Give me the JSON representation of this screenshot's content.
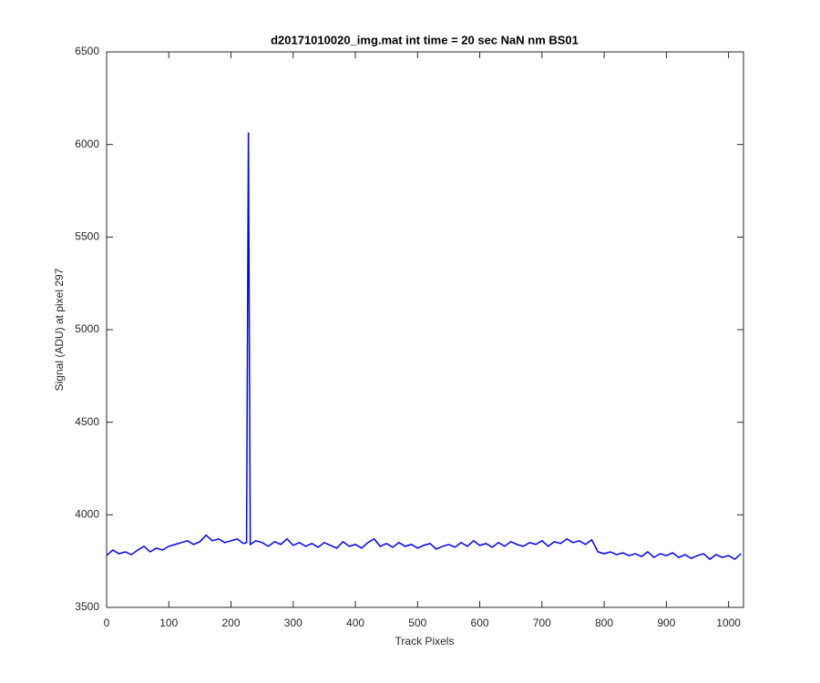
{
  "chart_data": {
    "type": "line",
    "title": "d20171010020_img.mat int time = 20 sec  NaN nm BS01",
    "x_label": "Track Pixels",
    "y_label": "Signal (ADU) at pixel 297",
    "color": "#0000ff",
    "x": [
      0,
      10,
      20,
      30,
      40,
      50,
      60,
      70,
      80,
      90,
      100,
      110,
      120,
      130,
      140,
      150,
      160,
      170,
      180,
      190,
      200,
      210,
      220,
      225,
      228,
      231,
      240,
      250,
      260,
      270,
      280,
      290,
      300,
      310,
      320,
      330,
      340,
      350,
      360,
      370,
      380,
      390,
      400,
      410,
      420,
      430,
      440,
      450,
      460,
      470,
      480,
      490,
      500,
      510,
      520,
      530,
      540,
      550,
      560,
      570,
      580,
      590,
      600,
      610,
      620,
      630,
      640,
      650,
      660,
      670,
      680,
      690,
      700,
      710,
      720,
      730,
      740,
      750,
      760,
      770,
      780,
      790,
      800,
      810,
      820,
      830,
      840,
      850,
      860,
      870,
      880,
      890,
      900,
      910,
      920,
      930,
      940,
      950,
      960,
      970,
      980,
      990,
      1000,
      1010,
      1020
    ],
    "values": [
      3780,
      3810,
      3790,
      3800,
      3785,
      3810,
      3830,
      3800,
      3820,
      3810,
      3830,
      3840,
      3850,
      3860,
      3840,
      3855,
      3890,
      3860,
      3870,
      3850,
      3860,
      3870,
      3845,
      3850,
      6065,
      3840,
      3860,
      3850,
      3830,
      3855,
      3840,
      3870,
      3835,
      3850,
      3830,
      3845,
      3825,
      3850,
      3835,
      3820,
      3855,
      3830,
      3840,
      3820,
      3850,
      3870,
      3830,
      3845,
      3825,
      3850,
      3830,
      3840,
      3820,
      3835,
      3845,
      3815,
      3830,
      3840,
      3825,
      3850,
      3830,
      3860,
      3835,
      3845,
      3825,
      3850,
      3830,
      3855,
      3840,
      3830,
      3850,
      3840,
      3860,
      3830,
      3855,
      3845,
      3870,
      3850,
      3860,
      3840,
      3865,
      3800,
      3790,
      3800,
      3785,
      3795,
      3780,
      3790,
      3775,
      3800,
      3770,
      3790,
      3780,
      3795,
      3770,
      3785,
      3765,
      3780,
      3790,
      3760,
      3785,
      3770,
      3780,
      3760,
      3790
    ],
    "xlim": [
      0,
      1024
    ],
    "ylim": [
      3500,
      6500
    ],
    "xticks": [
      0,
      100,
      200,
      300,
      400,
      500,
      600,
      700,
      800,
      900,
      1000
    ],
    "yticks": [
      3500,
      4000,
      4500,
      5000,
      5500,
      6000,
      6500
    ]
  }
}
